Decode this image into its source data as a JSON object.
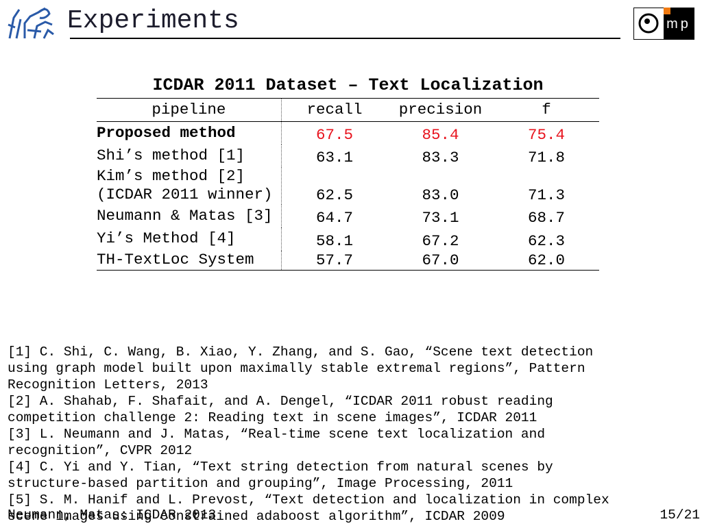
{
  "header": {
    "title": "Experiments",
    "logo_text": "mp"
  },
  "table": {
    "caption": "ICDAR 2011 Dataset – Text Localization",
    "columns": [
      "pipeline",
      "recall",
      "precision",
      "f"
    ],
    "rows": [
      {
        "pipeline": [
          "Proposed method"
        ],
        "values": [
          "67.5",
          "85.4",
          "75.4"
        ],
        "color": "#e8141e"
      },
      {
        "pipeline": [
          "Shi’s method [1]"
        ],
        "values": [
          "63.1",
          "83.3",
          "71.8"
        ]
      },
      {
        "pipeline": [
          "Kim’s method [2]",
          "(ICDAR 2011 winner)"
        ],
        "values": [
          "62.5",
          "83.0",
          "71.3"
        ]
      },
      {
        "pipeline": [
          "Neumann & Matas [3]"
        ],
        "values": [
          "64.7",
          "73.1",
          "68.7"
        ]
      },
      {
        "pipeline": [
          "Yi’s Method [4]"
        ],
        "values": [
          "58.1",
          "67.2",
          "62.3"
        ]
      },
      {
        "pipeline": [
          "TH-TextLoc System"
        ],
        "values": [
          "57.7",
          "67.0",
          "62.0"
        ]
      }
    ]
  },
  "references": [
    "[1] C. Shi, C. Wang, B. Xiao, Y. Zhang, and S. Gao, “Scene text detection",
    "using graph model built upon maximally stable extremal regions”, Pattern",
    "Recognition Letters, 2013",
    "[2] A. Shahab, F. Shafait, and A. Dengel, “ICDAR 2011 robust reading",
    "competition challenge 2: Reading text in scene images”, ICDAR 2011",
    "[3] L. Neumann and J. Matas, “Real-time scene text localization and",
    "recognition”, CVPR 2012",
    "[4] C. Yi and Y. Tian, “Text string detection from natural scenes by",
    "structure-based partition and grouping”, Image Processing, 2011",
    "[5] S. M. Hanif and L. Prevost, “Text detection and localization in complex",
    "scene images using constrained adaboost algorithm”, ICDAR 2009"
  ],
  "footer": {
    "left": "Neumann, Matas: ICDAR 2013",
    "right": "15/21"
  }
}
